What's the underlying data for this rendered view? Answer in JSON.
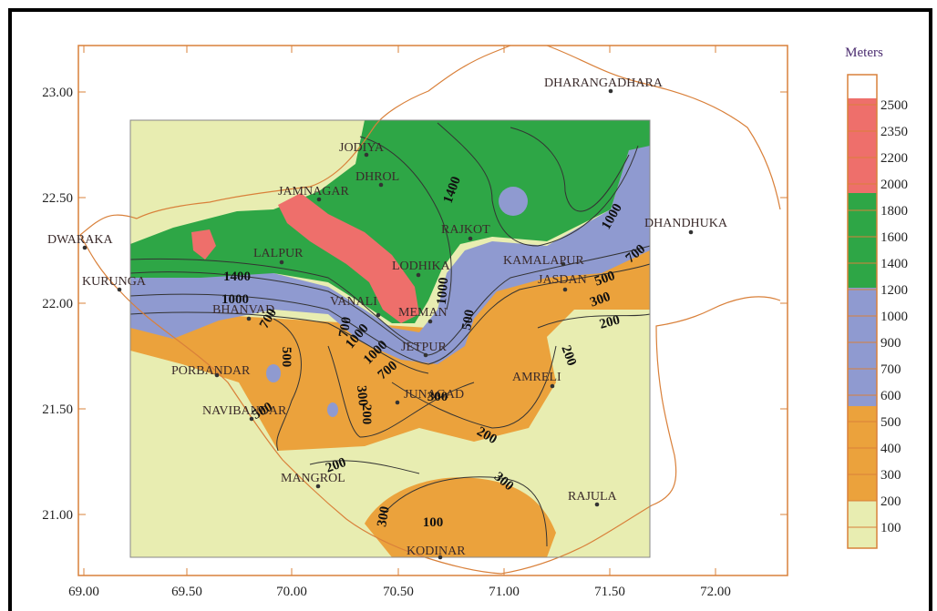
{
  "map": {
    "axes": {
      "x_ticks": [
        "69.00",
        "69.50",
        "70.00",
        "70.50",
        "71.00",
        "71.50",
        "72.00"
      ],
      "y_ticks": [
        "23.00",
        "22.50",
        "22.00",
        "21.50",
        "21.00"
      ]
    },
    "towns": [
      "DHARANGADHARA",
      "JODIYA",
      "DHROL",
      "JAMNAGAR",
      "DWARAKA",
      "LALPUR",
      "RAJKOT",
      "DHANDHUKA",
      "LODHIKA",
      "KAMALAPUR",
      "JASDAN",
      "KURUNGA",
      "BHANVAD",
      "VANALI",
      "MEMAN",
      "JETPUR",
      "PORBANDAR",
      "AMRELI",
      "JUNAGAD",
      "NAVIBANDAR",
      "MANGROL",
      "RAJULA",
      "KODINAR"
    ],
    "contour_labels": [
      "1400",
      "1000",
      "700",
      "1400",
      "1000",
      "700",
      "500",
      "300",
      "200",
      "1000",
      "500",
      "700",
      "1000",
      "1000",
      "700",
      "500",
      "500",
      "300",
      "300",
      "200",
      "200",
      "300",
      "100",
      "200",
      "300",
      "200"
    ],
    "colors": {
      "white": "#ffffff",
      "red": "#ee6f6b",
      "green": "#2ea646",
      "blue": "#8f9ad0",
      "orange": "#eba23c",
      "cream": "#e8edb1",
      "outline": "#d9803a"
    }
  },
  "legend": {
    "title": "Meters",
    "labels": [
      "2500",
      "2350",
      "2200",
      "2000",
      "1800",
      "1600",
      "1400",
      "1200",
      "1000",
      "900",
      "700",
      "600",
      "500",
      "400",
      "300",
      "200",
      "100"
    ]
  }
}
